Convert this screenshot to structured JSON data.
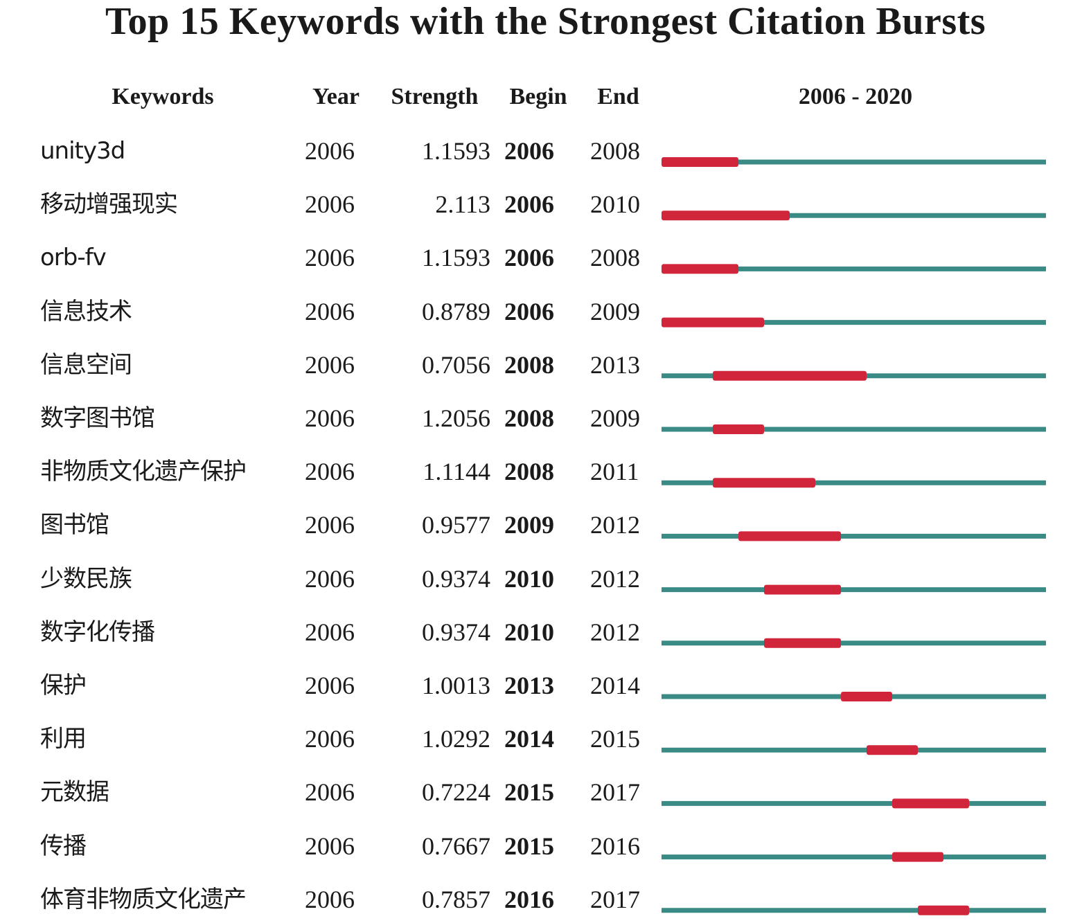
{
  "title": "Top 15 Keywords with the Strongest Citation Bursts",
  "headers": {
    "keywords": "Keywords",
    "year": "Year",
    "strength": "Strength",
    "begin": "Begin",
    "end": "End",
    "range": "2006 - 2020"
  },
  "colors": {
    "burst": "#d0253a",
    "baseline": "#3a8a86",
    "text": "#1a1a1a"
  },
  "chart_data": {
    "type": "table",
    "title": "Top 15 Keywords with the Strongest Citation Bursts",
    "range": [
      2006,
      2020
    ],
    "rows": [
      {
        "keyword": "unity3d",
        "year": "2006",
        "strength": "1.1593",
        "begin": "2006",
        "end": "2008"
      },
      {
        "keyword": "移动增强现实",
        "year": "2006",
        "strength": "2.113",
        "begin": "2006",
        "end": "2010"
      },
      {
        "keyword": "orb-fv",
        "year": "2006",
        "strength": "1.1593",
        "begin": "2006",
        "end": "2008"
      },
      {
        "keyword": "信息技术",
        "year": "2006",
        "strength": "0.8789",
        "begin": "2006",
        "end": "2009"
      },
      {
        "keyword": "信息空间",
        "year": "2006",
        "strength": "0.7056",
        "begin": "2008",
        "end": "2013"
      },
      {
        "keyword": "数字图书馆",
        "year": "2006",
        "strength": "1.2056",
        "begin": "2008",
        "end": "2009"
      },
      {
        "keyword": "非物质文化遗产保护",
        "year": "2006",
        "strength": "1.1144",
        "begin": "2008",
        "end": "2011"
      },
      {
        "keyword": "图书馆",
        "year": "2006",
        "strength": "0.9577",
        "begin": "2009",
        "end": "2012"
      },
      {
        "keyword": "少数民族",
        "year": "2006",
        "strength": "0.9374",
        "begin": "2010",
        "end": "2012"
      },
      {
        "keyword": "数字化传播",
        "year": "2006",
        "strength": "0.9374",
        "begin": "2010",
        "end": "2012"
      },
      {
        "keyword": "保护",
        "year": "2006",
        "strength": "1.0013",
        "begin": "2013",
        "end": "2014"
      },
      {
        "keyword": "利用",
        "year": "2006",
        "strength": "1.0292",
        "begin": "2014",
        "end": "2015"
      },
      {
        "keyword": "元数据",
        "year": "2006",
        "strength": "0.7224",
        "begin": "2015",
        "end": "2017"
      },
      {
        "keyword": "传播",
        "year": "2006",
        "strength": "0.7667",
        "begin": "2015",
        "end": "2016"
      },
      {
        "keyword": "体育非物质文化遗产",
        "year": "2006",
        "strength": "0.7857",
        "begin": "2016",
        "end": "2017"
      }
    ]
  }
}
